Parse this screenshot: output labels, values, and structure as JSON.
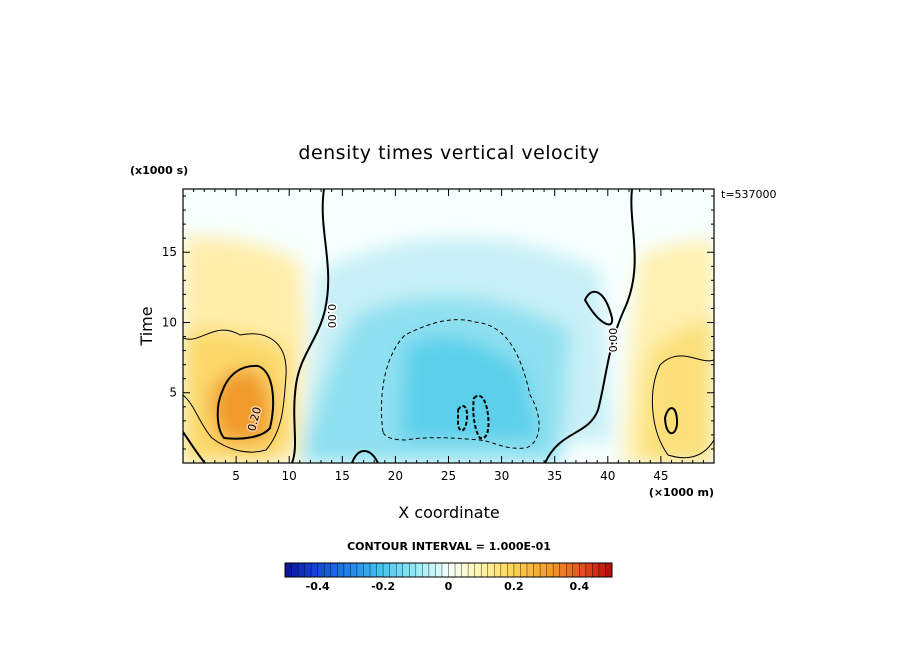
{
  "chart_data": {
    "type": "heatmap",
    "title": "density times vertical velocity",
    "xlabel": "X coordinate",
    "ylabel": "Time",
    "x_unit": "(×1000 m)",
    "y_unit": "(x1000 s)",
    "time_stamp": "t=537000",
    "xlim": [
      0,
      50
    ],
    "ylim": [
      0,
      19.5
    ],
    "x_ticks": [
      5,
      10,
      15,
      20,
      25,
      30,
      35,
      40,
      45
    ],
    "y_ticks": [
      5,
      10,
      15
    ],
    "contour_interval_text": "CONTOUR INTERVAL = 1.000E-01",
    "contour_labels": [
      {
        "text": "0.00",
        "x": 13.8,
        "y": 11.0
      },
      {
        "text": "0.00",
        "x": 41.3,
        "y": 8.5
      },
      {
        "text": "0.20",
        "x": 6.8,
        "y": 3.0
      }
    ],
    "colorbar": {
      "min": -0.5,
      "max": 0.5,
      "ticks": [
        -0.4,
        -0.2,
        0,
        0.2,
        0.4
      ],
      "tick_labels": [
        "-0.4",
        "-0.2",
        "0",
        "0.2",
        "0.4"
      ]
    },
    "features": [
      {
        "name": "positive maximum",
        "x": 6,
        "y": 4,
        "value": 0.3
      },
      {
        "name": "negative region",
        "x": 27,
        "y": 6,
        "value": -0.15
      },
      {
        "name": "negative minimum",
        "x": 27.5,
        "y": 3,
        "value": -0.2
      },
      {
        "name": "positive maximum",
        "x": 46,
        "y": 4,
        "value": 0.15
      }
    ]
  }
}
